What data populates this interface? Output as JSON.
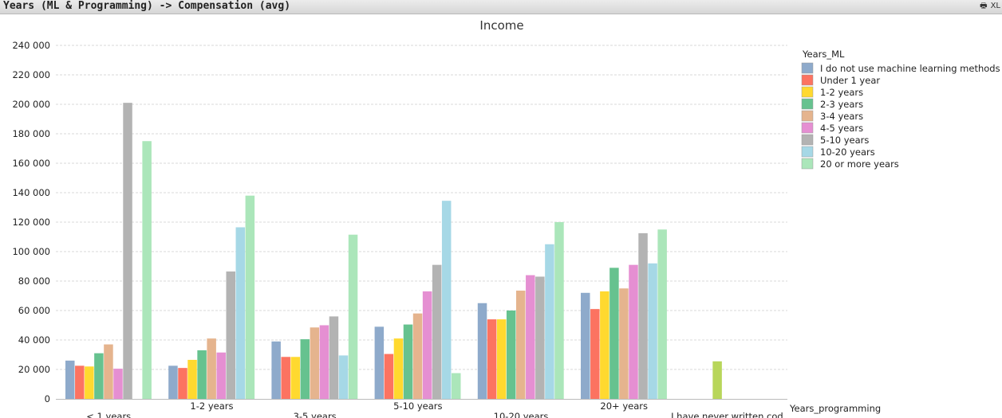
{
  "window": {
    "title": "Years (ML & Programming) -> Compensation (avg)",
    "print_icon": "printer-icon",
    "excel_icon": "XL"
  },
  "chart_data": {
    "type": "bar",
    "title": "Income",
    "xlabel": "Years_programming",
    "ylabel": "",
    "ylim": [
      0,
      240000
    ],
    "yticks": [
      "0",
      "20 000",
      "40 000",
      "60 000",
      "80 000",
      "100 000",
      "120 000",
      "140 000",
      "160 000",
      "180 000",
      "200 000",
      "220 000",
      "240 000"
    ],
    "grid": true,
    "legend_title": "Years_ML",
    "legend_position": "right",
    "categories": [
      "< 1 years",
      "1-2 years",
      "3-5 years",
      "5-10 years",
      "10-20 years",
      "20+ years",
      "I have never written cod"
    ],
    "series": [
      {
        "name": "I do not use machine learning methods",
        "color": "#8eaacb",
        "values": [
          26000,
          22500,
          39000,
          49000,
          65000,
          72000,
          null
        ]
      },
      {
        "name": "Under 1 year",
        "color": "#fc7361",
        "values": [
          22500,
          21000,
          28500,
          30500,
          54000,
          61000,
          null
        ]
      },
      {
        "name": "1-2 years",
        "color": "#ffd92f",
        "values": [
          22000,
          26500,
          28500,
          41000,
          54000,
          73000,
          null
        ]
      },
      {
        "name": "2-3 years",
        "color": "#66c28f",
        "values": [
          31000,
          33000,
          40500,
          50500,
          60000,
          89000,
          null
        ]
      },
      {
        "name": "3-4 years",
        "color": "#e5b48e",
        "values": [
          37000,
          41000,
          48500,
          58000,
          73500,
          75000,
          null
        ]
      },
      {
        "name": "4-5 years",
        "color": "#e58fd2",
        "values": [
          20500,
          31500,
          50000,
          73000,
          84000,
          91000,
          null
        ]
      },
      {
        "name": "5-10 years",
        "color": "#b3b3b3",
        "values": [
          201000,
          86500,
          56000,
          91000,
          83000,
          112500,
          null
        ]
      },
      {
        "name": "10-20 years",
        "color": "#a6d8e6",
        "values": [
          null,
          116500,
          29500,
          134500,
          105000,
          92000,
          null
        ]
      },
      {
        "name": "20 or more years",
        "color": "#abe6ba",
        "values": [
          175000,
          138000,
          111500,
          17500,
          120000,
          115000,
          null
        ]
      }
    ],
    "extra_bars": [
      {
        "category": "I have never written cod",
        "value": 25500,
        "color": "#b8d65a"
      }
    ]
  }
}
